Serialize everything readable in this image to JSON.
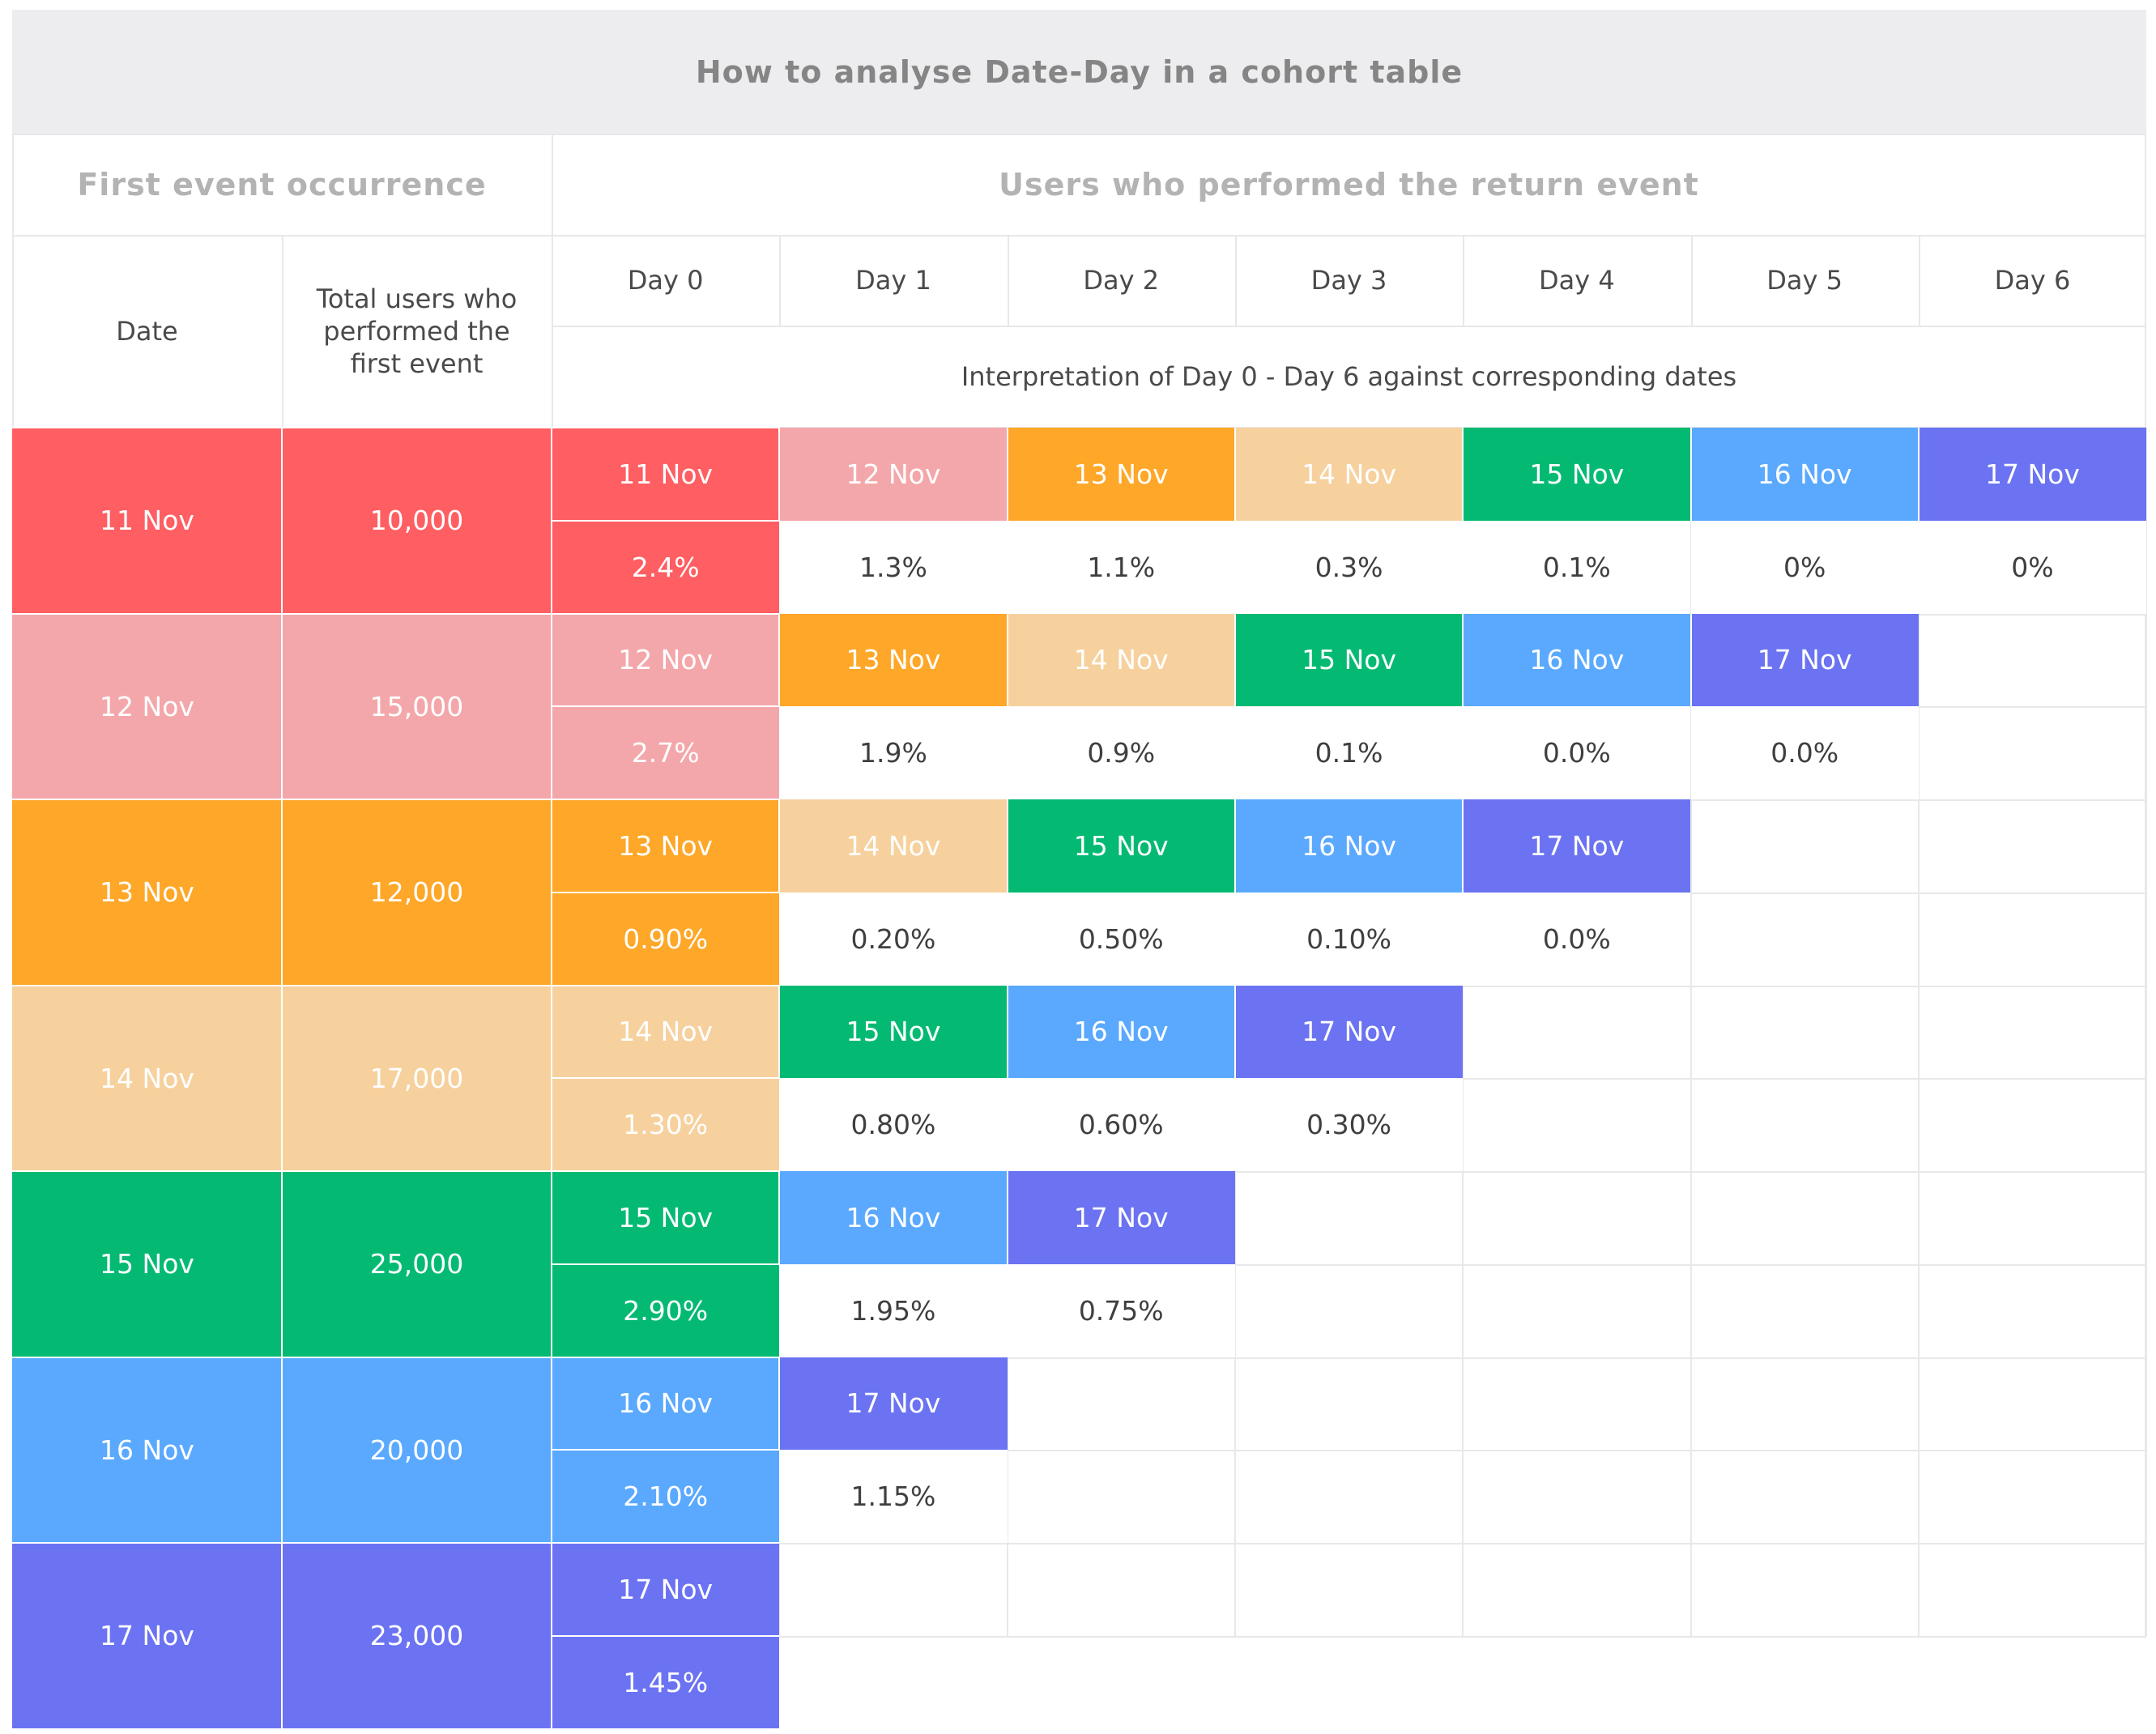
{
  "title": "How to analyse Date-Day in a cohort table",
  "group_headers": {
    "first_event": "First event occurrence",
    "return_event": "Users who performed the return event"
  },
  "column_headers": {
    "date": "Date",
    "total_users": "Total users who performed the first event",
    "days": [
      "Day 0",
      "Day 1",
      "Day 2",
      "Day 3",
      "Day 4",
      "Day 5",
      "Day 6"
    ]
  },
  "interpretation": "Interpretation of Day 0 - Day 6 against corresponding dates",
  "colors": {
    "11 Nov": "#ff5e62",
    "12 Nov": "#f4a7aa",
    "13 Nov": "#fea728",
    "14 Nov": "#f6d19e",
    "15 Nov": "#04ba73",
    "16 Nov": "#5aa9fe",
    "17 Nov": "#6b73f2"
  },
  "cohorts": [
    {
      "date": "11 Nov",
      "total_users": "10,000",
      "day_dates": [
        "11 Nov",
        "12 Nov",
        "13 Nov",
        "14 Nov",
        "15 Nov",
        "16 Nov",
        "17 Nov"
      ],
      "percentages": [
        "2.4%",
        "1.3%",
        "1.1%",
        "0.3%",
        "0.1%",
        "0%",
        "0%"
      ]
    },
    {
      "date": "12 Nov",
      "total_users": "15,000",
      "day_dates": [
        "12 Nov",
        "13 Nov",
        "14 Nov",
        "15 Nov",
        "16 Nov",
        "17 Nov"
      ],
      "percentages": [
        "2.7%",
        "1.9%",
        "0.9%",
        "0.1%",
        "0.0%",
        "0.0%"
      ]
    },
    {
      "date": "13 Nov",
      "total_users": "12,000",
      "day_dates": [
        "13 Nov",
        "14 Nov",
        "15 Nov",
        "16 Nov",
        "17 Nov"
      ],
      "percentages": [
        "0.90%",
        "0.20%",
        "0.50%",
        "0.10%",
        "0.0%"
      ]
    },
    {
      "date": "14 Nov",
      "total_users": "17,000",
      "day_dates": [
        "14 Nov",
        "15 Nov",
        "16 Nov",
        "17 Nov"
      ],
      "percentages": [
        "1.30%",
        "0.80%",
        "0.60%",
        "0.30%"
      ]
    },
    {
      "date": "15 Nov",
      "total_users": "25,000",
      "day_dates": [
        "15 Nov",
        "16 Nov",
        "17 Nov"
      ],
      "percentages": [
        "2.90%",
        "1.95%",
        "0.75%"
      ]
    },
    {
      "date": "16 Nov",
      "total_users": "20,000",
      "day_dates": [
        "16 Nov",
        "17 Nov"
      ],
      "percentages": [
        "2.10%",
        "1.15%"
      ]
    },
    {
      "date": "17 Nov",
      "total_users": "23,000",
      "day_dates": [
        "17 Nov"
      ],
      "percentages": [
        "1.45%"
      ]
    }
  ]
}
